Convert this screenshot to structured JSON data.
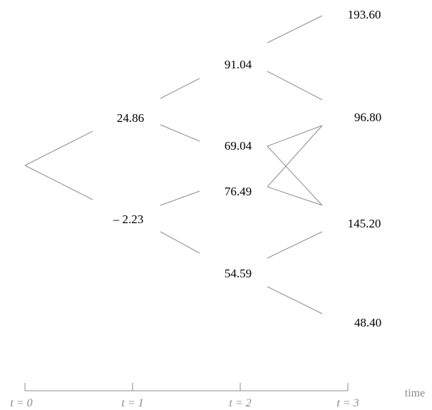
{
  "tree": {
    "root": "",
    "t1": {
      "upper": "24.86",
      "lower": "– 2.23"
    },
    "t2": {
      "n1": "91.04",
      "n2": "69.04",
      "n3": "76.49",
      "n4": "54.59"
    },
    "t3": {
      "n1": "193.60",
      "n2": "96.80",
      "n3": "145.20",
      "n4": "48.40"
    }
  },
  "axis": {
    "ticks": [
      "t = 0",
      "t = 1",
      "t = 2",
      "t = 3"
    ],
    "title": "time"
  },
  "colors": {
    "edge": "#8c8c8c",
    "axis_text": "#8a8a8a",
    "node_text": "#000000"
  }
}
